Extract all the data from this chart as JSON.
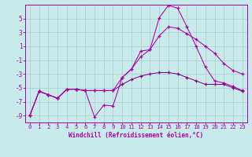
{
  "bg_color": "#c8eaea",
  "grid_color": "#aacccc",
  "line_color": "#aa00aa",
  "line_color2": "#880088",
  "xlabel": "Windchill (Refroidissement éolien,°C)",
  "xlim": [
    -0.5,
    23.5
  ],
  "ylim": [
    -10.0,
    7.0
  ],
  "yticks": [
    -9,
    -7,
    -5,
    -3,
    -1,
    1,
    3,
    5
  ],
  "xticks": [
    0,
    1,
    2,
    3,
    4,
    5,
    6,
    7,
    8,
    9,
    10,
    11,
    12,
    13,
    14,
    15,
    16,
    17,
    18,
    19,
    20,
    21,
    22,
    23
  ],
  "line1_x": [
    0,
    1,
    2,
    3,
    4,
    5,
    6,
    7,
    8,
    9,
    10,
    11,
    12,
    13,
    14,
    15,
    16,
    17,
    18,
    19,
    20,
    21,
    22,
    23
  ],
  "line1_y": [
    -9.0,
    -5.5,
    -6.0,
    -6.5,
    -5.2,
    -5.2,
    -5.4,
    -9.2,
    -7.5,
    -7.6,
    -3.5,
    -2.3,
    0.3,
    0.5,
    5.1,
    6.9,
    6.5,
    3.8,
    1.0,
    -2.0,
    -4.0,
    -4.3,
    -4.8,
    -5.4
  ],
  "line2_x": [
    0,
    1,
    2,
    3,
    4,
    5,
    6,
    7,
    8,
    9,
    10,
    11,
    12,
    13,
    14,
    15,
    16,
    17,
    18,
    19,
    20,
    21,
    22,
    23
  ],
  "line2_y": [
    -9.0,
    -5.5,
    -6.0,
    -6.5,
    -5.2,
    -5.2,
    -5.4,
    -5.4,
    -5.4,
    -5.4,
    -4.5,
    -3.8,
    -3.3,
    -3.0,
    -2.8,
    -2.8,
    -3.0,
    -3.5,
    -4.0,
    -4.5,
    -4.5,
    -4.5,
    -5.0,
    -5.5
  ],
  "line3_x": [
    0,
    1,
    2,
    3,
    4,
    5,
    6,
    7,
    8,
    9,
    10,
    11,
    12,
    13,
    14,
    15,
    16,
    17,
    18,
    19,
    20,
    21,
    22,
    23
  ],
  "line3_y": [
    -9.0,
    -5.5,
    -6.0,
    -6.5,
    -5.2,
    -5.2,
    -5.4,
    -5.4,
    -5.4,
    -5.4,
    -3.5,
    -2.3,
    -0.5,
    0.5,
    2.5,
    3.8,
    3.6,
    2.8,
    2.0,
    1.0,
    0.0,
    -1.5,
    -2.5,
    -3.0
  ],
  "xlabel_fontsize": 5.5,
  "tick_fontsize": 5.2
}
